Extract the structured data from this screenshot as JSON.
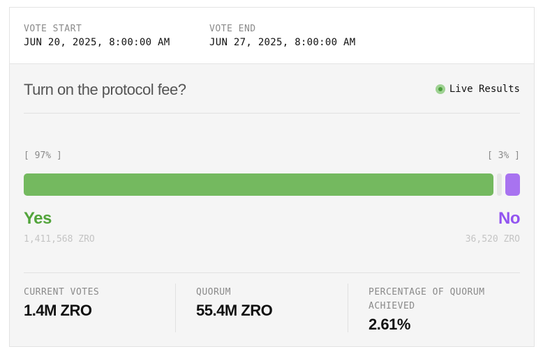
{
  "vote_times": {
    "start_label": "VOTE START",
    "start_value": "JUN 20, 2025, 8:00:00 AM",
    "end_label": "VOTE END",
    "end_value": "JUN 27, 2025, 8:00:00 AM"
  },
  "proposal": {
    "question": "Turn on the protocol fee?",
    "live_label": "Live Results"
  },
  "results": {
    "yes_percent_label": "[ 97% ]",
    "no_percent_label": "[ 3% ]",
    "yes_fraction": 0.97,
    "no_fraction": 0.03,
    "yes_label": "Yes",
    "no_label": "No",
    "yes_count": "1,411,568 ZRO",
    "no_count": "36,520 ZRO",
    "colors": {
      "yes": "#74b95f",
      "no": "#a873f0",
      "yes_text": "#52a43b",
      "no_text": "#9254f0"
    }
  },
  "stats": {
    "current_votes_label": "CURRENT VOTES",
    "current_votes_value": "1.4M ZRO",
    "quorum_label": "QUORUM",
    "quorum_value": "55.4M ZRO",
    "quorum_pct_label": "PERCENTAGE OF QUORUM ACHIEVED",
    "quorum_pct_value": "2.61%"
  },
  "icons": {
    "live": "live-indicator-dot-icon"
  }
}
